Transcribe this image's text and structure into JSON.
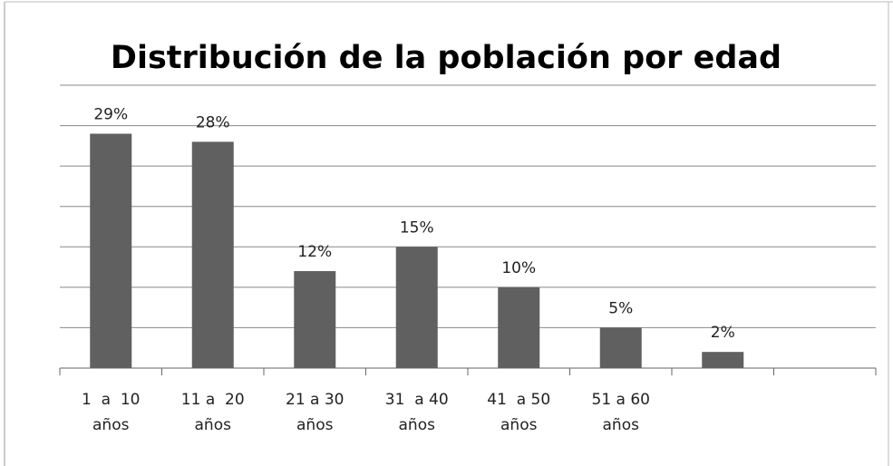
{
  "chart_data": {
    "type": "bar",
    "title": "Distribución de la población por edad",
    "categories": [
      "1  a  10 años",
      "11 a  20 años",
      "21 a 30 años",
      "31  a 40 años",
      "41  a 50 años",
      "51 a 60 años",
      null,
      null
    ],
    "values": [
      29,
      28,
      12,
      15,
      10,
      5,
      2,
      null
    ],
    "value_labels": [
      "29%",
      "28%",
      "12%",
      "15%",
      "10%",
      "5%",
      "2%",
      null
    ],
    "color": "#606060",
    "ylim": [
      0,
      35
    ],
    "yticks": [
      0,
      5,
      10,
      15,
      20,
      25,
      30,
      35
    ],
    "grid": true
  }
}
